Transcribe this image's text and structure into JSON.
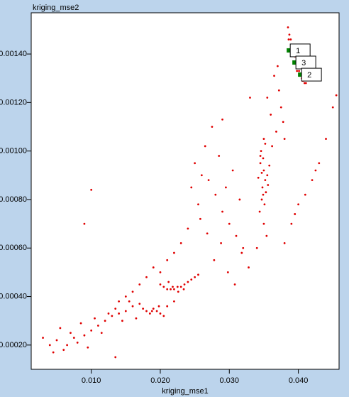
{
  "chart_data": {
    "type": "scatter",
    "title": "kriging_mse2",
    "x_label": "kriging_mse1",
    "xlim": [
      0.0013,
      0.0459
    ],
    "ylim": [
      0.0001,
      0.00157
    ],
    "xticks": [
      {
        "value": 0.01,
        "label": "0.010"
      },
      {
        "value": 0.02,
        "label": "0.020"
      },
      {
        "value": 0.03,
        "label": "0.030"
      },
      {
        "value": 0.04,
        "label": "0.040"
      }
    ],
    "yticks": [
      {
        "value": 0.0002,
        "label": "0.00020"
      },
      {
        "value": 0.0004,
        "label": "0.00040"
      },
      {
        "value": 0.0006,
        "label": "0.00060"
      },
      {
        "value": 0.0008,
        "label": "0.00080"
      },
      {
        "value": 0.001,
        "label": "0.00100"
      },
      {
        "value": 0.0012,
        "label": "0.00120"
      },
      {
        "value": 0.0014,
        "label": "0.00140"
      }
    ],
    "series": [
      {
        "color": "#e00000",
        "x": [
          0.0385,
          0.0387,
          0.0389,
          0.0391,
          0.0393,
          0.0395,
          0.0397,
          0.0399,
          0.0401,
          0.0403,
          0.0405,
          0.0407,
          0.0409,
          0.0411,
          0.0386,
          0.039,
          0.0394,
          0.0398,
          0.0402,
          0.0406,
          0.0365,
          0.0355,
          0.0372,
          0.036,
          0.0368,
          0.035,
          0.0375,
          0.0378,
          0.0345,
          0.0362,
          0.037,
          0.038,
          0.0345,
          0.035,
          0.0352,
          0.0348,
          0.0355,
          0.0347,
          0.0351,
          0.0349,
          0.0353,
          0.0346,
          0.0356,
          0.0344,
          0.035,
          0.0358,
          0.0342,
          0.0354,
          0.0349,
          0.0347,
          0.0352,
          0.034,
          0.026,
          0.027,
          0.025,
          0.028,
          0.029,
          0.03,
          0.031,
          0.032,
          0.0255,
          0.0265,
          0.0275,
          0.0285,
          0.0295,
          0.0305,
          0.0315,
          0.024,
          0.023,
          0.022,
          0.021,
          0.02,
          0.019,
          0.018,
          0.0245,
          0.0258,
          0.0268,
          0.0278,
          0.0288,
          0.0298,
          0.0308,
          0.0318,
          0.0328,
          0.017,
          0.016,
          0.015,
          0.014,
          0.02,
          0.0205,
          0.021,
          0.0215,
          0.022,
          0.0225,
          0.023,
          0.0235,
          0.024,
          0.0245,
          0.025,
          0.0255,
          0.0212,
          0.0218,
          0.0226,
          0.0234,
          0.013,
          0.014,
          0.015,
          0.016,
          0.017,
          0.018,
          0.0185,
          0.019,
          0.0195,
          0.02,
          0.021,
          0.022,
          0.0145,
          0.0155,
          0.0165,
          0.0175,
          0.0188,
          0.0198,
          0.0205,
          0.0135,
          0.003,
          0.004,
          0.005,
          0.006,
          0.007,
          0.008,
          0.009,
          0.01,
          0.011,
          0.012,
          0.0045,
          0.0055,
          0.0065,
          0.0075,
          0.0085,
          0.0095,
          0.0105,
          0.0115,
          0.0125,
          0.0135,
          0.038,
          0.039,
          0.04,
          0.041,
          0.042,
          0.043,
          0.044,
          0.045,
          0.0395,
          0.0425,
          0.01,
          0.009,
          0.029,
          0.033,
          0.0455
        ],
        "values": [
          0.00151,
          0.00148,
          0.00146,
          0.00143,
          0.00141,
          0.00139,
          0.00137,
          0.00135,
          0.00133,
          0.00132,
          0.0013,
          0.00129,
          0.00128,
          0.00128,
          0.00146,
          0.0014,
          0.00136,
          0.00133,
          0.00131,
          0.00129,
          0.00131,
          0.00122,
          0.00125,
          0.00115,
          0.00108,
          0.00105,
          0.00118,
          0.00112,
          0.00098,
          0.00102,
          0.00135,
          0.00105,
          0.00095,
          0.00092,
          0.00088,
          0.00085,
          0.0009,
          0.0008,
          0.00078,
          0.00097,
          0.00083,
          0.001,
          0.00086,
          0.00075,
          0.0007,
          0.00094,
          0.00089,
          0.00065,
          0.00082,
          0.00091,
          0.00103,
          0.0006,
          0.0009,
          0.00088,
          0.00095,
          0.00082,
          0.00075,
          0.0007,
          0.00065,
          0.0006,
          0.00078,
          0.00102,
          0.0011,
          0.00098,
          0.00085,
          0.00092,
          0.0008,
          0.00068,
          0.00062,
          0.00058,
          0.00055,
          0.0005,
          0.00052,
          0.00048,
          0.00085,
          0.00072,
          0.00066,
          0.00055,
          0.00062,
          0.0005,
          0.00045,
          0.00058,
          0.00052,
          0.00045,
          0.00042,
          0.0004,
          0.00038,
          0.00045,
          0.00044,
          0.00043,
          0.00043,
          0.00043,
          0.00044,
          0.00044,
          0.00045,
          0.00046,
          0.00047,
          0.00048,
          0.00049,
          0.00046,
          0.00044,
          0.00042,
          0.00043,
          0.00032,
          0.00033,
          0.00034,
          0.00036,
          0.00037,
          0.00034,
          0.00033,
          0.00035,
          0.00034,
          0.00033,
          0.00036,
          0.00038,
          0.0003,
          0.00038,
          0.00031,
          0.00035,
          0.00034,
          0.00036,
          0.00032,
          0.00035,
          0.00023,
          0.0002,
          0.00022,
          0.00018,
          0.00025,
          0.00021,
          0.00024,
          0.00026,
          0.00028,
          0.0003,
          0.00017,
          0.00027,
          0.0002,
          0.00023,
          0.00029,
          0.00019,
          0.00031,
          0.00025,
          0.00033,
          0.00015,
          0.00062,
          0.0007,
          0.00078,
          0.00082,
          0.00088,
          0.00095,
          0.00105,
          0.00118,
          0.00074,
          0.00092,
          0.00084,
          0.0007,
          0.00113,
          0.00122,
          0.00123
        ]
      }
    ],
    "annotations": [
      {
        "label": "1",
        "x": 0.03862,
        "y": 0.001415,
        "color": "#008000"
      },
      {
        "label": "3",
        "x": 0.03944,
        "y": 0.001365,
        "color": "#008000"
      },
      {
        "label": "2",
        "x": 0.04026,
        "y": 0.001315,
        "color": "#008000"
      }
    ]
  }
}
